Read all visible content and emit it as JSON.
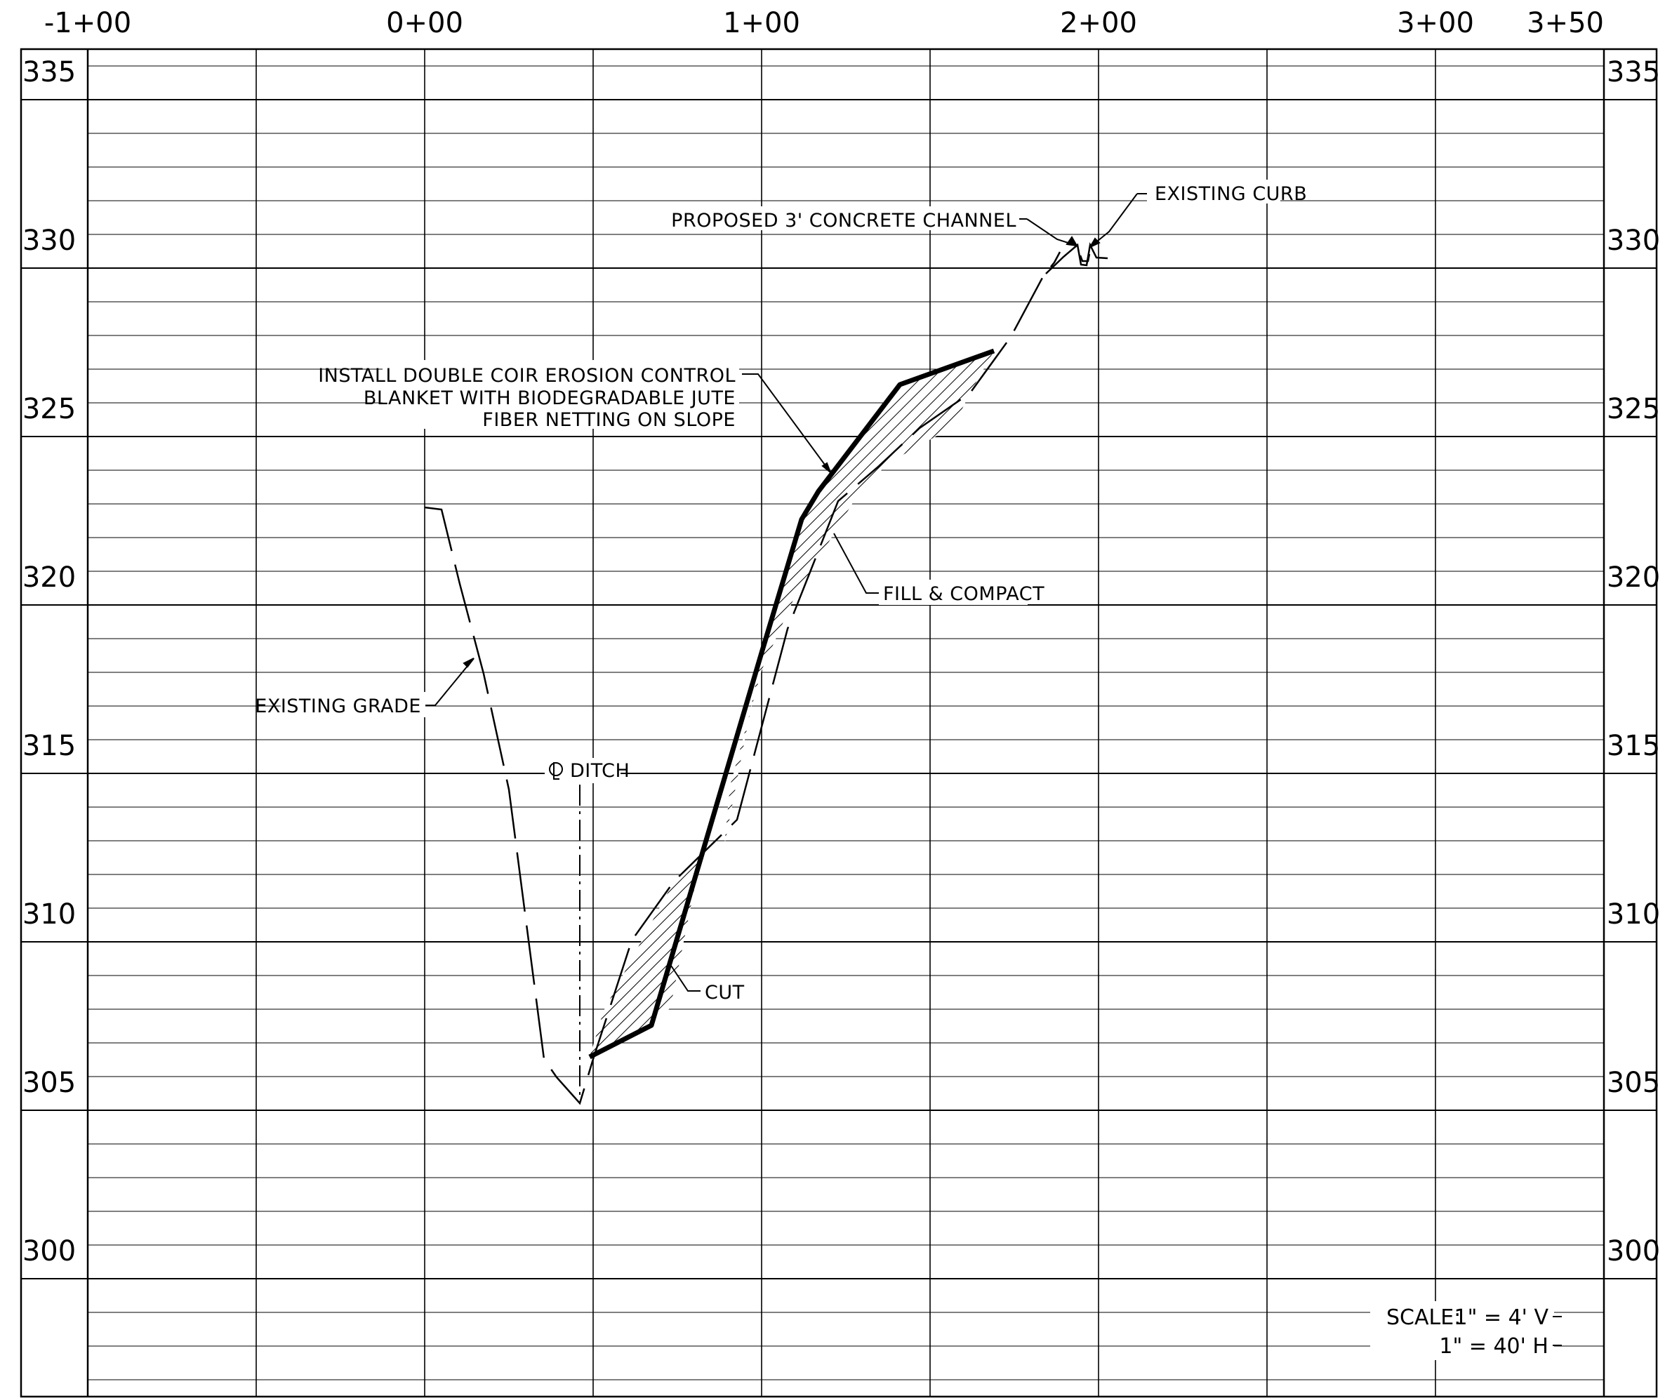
{
  "title": "",
  "station_labels": [
    "-1+00",
    "0+00",
    "1+00",
    "2+00",
    "3+00",
    "3+50"
  ],
  "elevation_labels": [
    "335",
    "330",
    "325",
    "320",
    "315",
    "310",
    "305",
    "300"
  ],
  "callouts": {
    "existing_curb": "EXISTING CURB",
    "proposed_channel": "PROPOSED 3' CONCRETE CHANNEL",
    "erosion_blanket": [
      "INSTALL DOUBLE COIR EROSION CONTROL",
      "BLANKET WITH BIODEGRADABLE JUTE",
      "FIBER NETTING ON SLOPE"
    ],
    "fill_compact": "FILL & COMPACT",
    "existing_grade": "EXISTING GRADE",
    "ditch_centerline": "DITCH",
    "ditch_centerline_symbol": "CL",
    "cut": "CUT"
  },
  "scale_note": {
    "label": "SCALE:",
    "vertical": "1\" = 4' V",
    "horizontal": "1\" = 40' H"
  },
  "chart_data": {
    "type": "line",
    "xlabel": "",
    "ylabel": "",
    "x_ticks": [
      "-1+00",
      "0+00",
      "1+00",
      "2+00",
      "3+00",
      "3+50"
    ],
    "y_ticks": [
      335,
      330,
      325,
      320,
      315,
      310,
      305,
      300
    ],
    "xlim": [
      -100,
      350
    ],
    "ylim": [
      296,
      336.5
    ],
    "grid": true,
    "series": [
      {
        "name": "EXISTING GRADE",
        "style": "dashed",
        "x": [
          0,
          5,
          12,
          20,
          30,
          37,
          40,
          47,
          55,
          72,
          90,
          108,
          118,
          138,
          148,
          170,
          180,
          190,
          195
        ],
        "y": [
          321.8,
          321.7,
          318,
          314,
          309,
          305.3,
          304.8,
          304,
          305.3,
          310.3,
          312,
          318,
          320,
          323,
          324,
          326.5,
          328,
          329.1,
          329.6
        ]
      },
      {
        "name": "PROPOSED GRADE",
        "style": "solid-heavy",
        "x": [
          50,
          68,
          100,
          112,
          117,
          137,
          169
        ],
        "y": [
          305.5,
          306.5,
          317,
          321.5,
          322.3,
          325.2,
          326.6
        ]
      },
      {
        "name": "EXISTING CURB",
        "style": "solid",
        "x": [
          195,
          196,
          198,
          200,
          203
        ],
        "y": [
          329.6,
          329,
          329.7,
          329.1,
          329.1
        ]
      }
    ],
    "regions": [
      {
        "name": "CUT",
        "x_range": [
          50,
          88
        ]
      },
      {
        "name": "FILL & COMPACT",
        "x_range": [
          88,
          169
        ]
      }
    ],
    "annotations": [
      "EXISTING CURB",
      "PROPOSED 3' CONCRETE CHANNEL",
      "INSTALL DOUBLE COIR EROSION CONTROL BLANKET WITH BIODEGRADABLE JUTE FIBER NETTING ON SLOPE",
      "FILL & COMPACT",
      "EXISTING GRADE",
      "DITCH",
      "CUT",
      "SCALE: 1\" = 4' V 1\" = 40' H"
    ]
  }
}
